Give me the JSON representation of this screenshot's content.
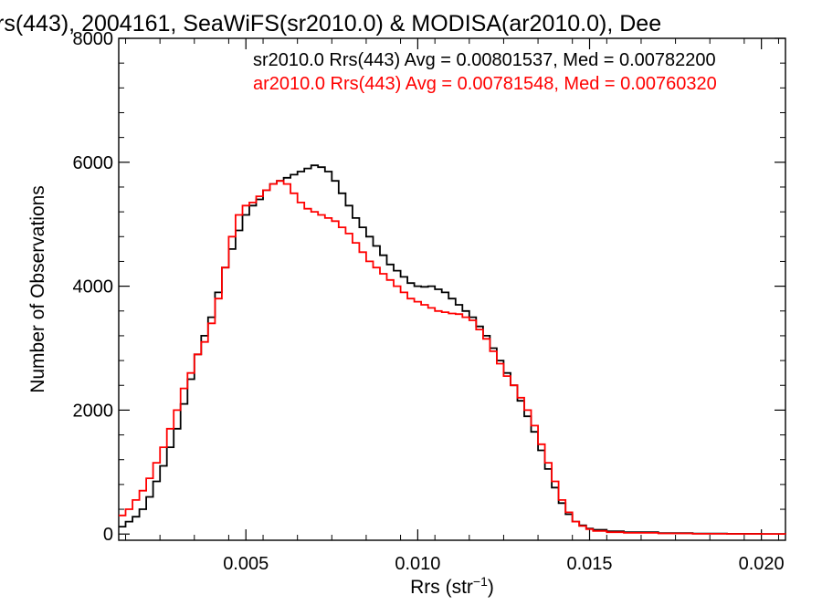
{
  "chart_data": {
    "type": "line",
    "title": "rs(443), 2004161, SeaWiFS(sr2010.0) & MODISA(ar2010.0), Dee",
    "xlabel": "Rrs (str",
    "xlabel_sup": "−1",
    "xlabel_close": ")",
    "ylabel": "Number of Observations",
    "xlim": [
      0.0013,
      0.0207
    ],
    "ylim": [
      -100,
      8000
    ],
    "x_ticks": [
      0.005,
      0.01,
      0.015,
      0.02
    ],
    "x_tick_labels": [
      "0.005",
      "0.010",
      "0.015",
      "0.020"
    ],
    "y_ticks": [
      0,
      2000,
      4000,
      6000,
      8000
    ],
    "y_tick_labels": [
      "0",
      "2000",
      "4000",
      "6000",
      "8000"
    ],
    "grid": false,
    "step": true,
    "legend_placement": "top-right",
    "series": [
      {
        "name": "sr2010.0 Rrs(443) Avg = 0.00801537, Med = 0.00782200",
        "color": "#000000",
        "x": [
          0.0013,
          0.0015,
          0.0017,
          0.0019,
          0.0021,
          0.0023,
          0.0025,
          0.0027,
          0.0029,
          0.0031,
          0.0033,
          0.0035,
          0.0037,
          0.0039,
          0.0041,
          0.0043,
          0.0045,
          0.0047,
          0.0049,
          0.0051,
          0.0053,
          0.0055,
          0.0057,
          0.0059,
          0.0061,
          0.0063,
          0.0065,
          0.0067,
          0.0069,
          0.0071,
          0.0073,
          0.0075,
          0.0077,
          0.0079,
          0.0081,
          0.0083,
          0.0085,
          0.0087,
          0.0089,
          0.0091,
          0.0093,
          0.0095,
          0.0097,
          0.0099,
          0.0101,
          0.0103,
          0.0105,
          0.0107,
          0.0109,
          0.0111,
          0.0113,
          0.0115,
          0.0117,
          0.0119,
          0.0121,
          0.0123,
          0.0125,
          0.0127,
          0.0129,
          0.0131,
          0.0133,
          0.0135,
          0.0137,
          0.0139,
          0.0141,
          0.0143,
          0.0145,
          0.0147,
          0.0149,
          0.0151,
          0.0155,
          0.016,
          0.017,
          0.018,
          0.019,
          0.02,
          0.0207
        ],
        "y": [
          120,
          200,
          280,
          400,
          600,
          850,
          1100,
          1400,
          1700,
          2100,
          2500,
          2900,
          3200,
          3500,
          3900,
          4300,
          4600,
          4900,
          5150,
          5300,
          5400,
          5550,
          5650,
          5700,
          5750,
          5800,
          5850,
          5900,
          5950,
          5920,
          5850,
          5700,
          5500,
          5300,
          5100,
          4950,
          4800,
          4650,
          4500,
          4350,
          4250,
          4150,
          4050,
          4000,
          3990,
          4000,
          3950,
          3900,
          3800,
          3700,
          3600,
          3500,
          3350,
          3200,
          3000,
          2800,
          2600,
          2400,
          2150,
          1900,
          1650,
          1350,
          1050,
          750,
          500,
          320,
          200,
          140,
          90,
          70,
          45,
          30,
          15,
          8,
          4,
          2,
          0
        ]
      },
      {
        "name": "ar2010.0 Rrs(443) Avg = 0.00781548, Med = 0.00760320",
        "color": "#ff0000",
        "x": [
          0.0013,
          0.0015,
          0.0017,
          0.0019,
          0.0021,
          0.0023,
          0.0025,
          0.0027,
          0.0029,
          0.0031,
          0.0033,
          0.0035,
          0.0037,
          0.0039,
          0.0041,
          0.0043,
          0.0045,
          0.0047,
          0.0049,
          0.0051,
          0.0053,
          0.0055,
          0.0057,
          0.0059,
          0.0061,
          0.0063,
          0.0065,
          0.0067,
          0.0069,
          0.0071,
          0.0073,
          0.0075,
          0.0077,
          0.0079,
          0.0081,
          0.0083,
          0.0085,
          0.0087,
          0.0089,
          0.0091,
          0.0093,
          0.0095,
          0.0097,
          0.0099,
          0.0101,
          0.0103,
          0.0105,
          0.0107,
          0.0109,
          0.0111,
          0.0113,
          0.0115,
          0.0117,
          0.0119,
          0.0121,
          0.0123,
          0.0125,
          0.0127,
          0.0129,
          0.0131,
          0.0133,
          0.0135,
          0.0137,
          0.0139,
          0.0141,
          0.0143,
          0.0145,
          0.0147,
          0.0149,
          0.0151,
          0.0155,
          0.016,
          0.017,
          0.018,
          0.019,
          0.02,
          0.0207
        ],
        "y": [
          300,
          400,
          550,
          700,
          900,
          1150,
          1400,
          1700,
          2000,
          2350,
          2600,
          2900,
          3100,
          3400,
          3800,
          4300,
          4800,
          5150,
          5300,
          5350,
          5450,
          5550,
          5650,
          5700,
          5650,
          5500,
          5350,
          5250,
          5200,
          5150,
          5100,
          5050,
          4950,
          4850,
          4700,
          4550,
          4400,
          4300,
          4200,
          4100,
          4000,
          3900,
          3800,
          3750,
          3700,
          3650,
          3600,
          3580,
          3560,
          3550,
          3500,
          3450,
          3300,
          3150,
          2950,
          2750,
          2550,
          2400,
          2200,
          2000,
          1750,
          1450,
          1150,
          850,
          550,
          350,
          200,
          130,
          80,
          50,
          30,
          20,
          10,
          5,
          3,
          2,
          0
        ]
      }
    ]
  }
}
